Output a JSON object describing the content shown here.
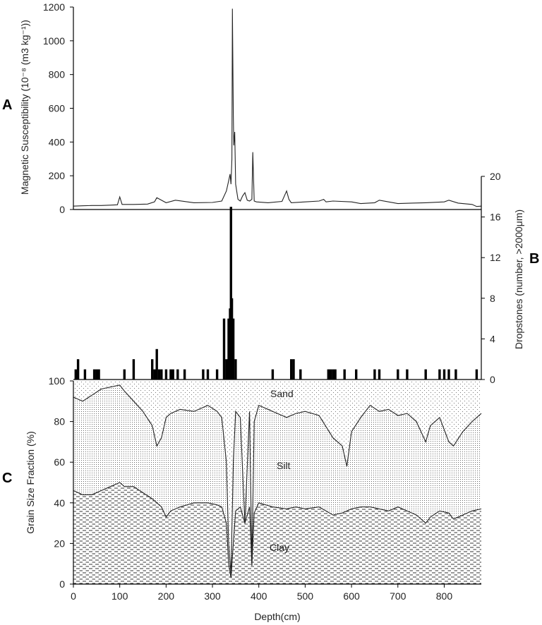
{
  "chart_data": [
    {
      "panel_label": "A",
      "type": "line",
      "ylabel": "Magnetic Susceptibility (10⁻⁸ (m3 kg⁻¹))",
      "ylim": [
        0,
        1200
      ],
      "yticks": [
        0,
        200,
        400,
        600,
        800,
        1000,
        1200
      ],
      "xlim": [
        0,
        880
      ],
      "x": [
        0,
        20,
        40,
        60,
        80,
        95,
        100,
        105,
        130,
        160,
        175,
        180,
        200,
        220,
        260,
        300,
        320,
        330,
        335,
        338,
        340,
        342,
        343,
        345,
        346,
        348,
        350,
        355,
        360,
        365,
        370,
        375,
        380,
        385,
        387,
        390,
        395,
        420,
        450,
        460,
        465,
        470,
        500,
        530,
        540,
        545,
        560,
        600,
        620,
        650,
        660,
        700,
        730,
        760,
        800,
        810,
        830,
        860,
        870,
        880
      ],
      "y": [
        20,
        22,
        24,
        24,
        26,
        28,
        75,
        30,
        30,
        32,
        45,
        70,
        40,
        55,
        40,
        42,
        50,
        110,
        170,
        210,
        150,
        300,
        1190,
        560,
        380,
        460,
        150,
        60,
        50,
        80,
        100,
        55,
        50,
        60,
        340,
        50,
        45,
        40,
        48,
        110,
        60,
        40,
        45,
        50,
        60,
        45,
        50,
        45,
        35,
        40,
        55,
        35,
        38,
        40,
        45,
        55,
        38,
        30,
        18,
        20
      ]
    },
    {
      "panel_label": "B",
      "type": "bar",
      "ylabel": "Dropstones (number, >2000μm)",
      "ylim": [
        0,
        20
      ],
      "yticks": [
        0,
        4,
        8,
        12,
        16,
        20
      ],
      "x": [
        5,
        10,
        25,
        45,
        50,
        55,
        110,
        130,
        170,
        175,
        180,
        185,
        190,
        200,
        210,
        215,
        225,
        240,
        280,
        290,
        310,
        325,
        330,
        335,
        338,
        340,
        342,
        345,
        350,
        430,
        470,
        475,
        490,
        550,
        555,
        560,
        565,
        585,
        610,
        650,
        660,
        700,
        720,
        760,
        790,
        800,
        810,
        825,
        870
      ],
      "values": [
        1,
        2,
        1,
        1,
        1,
        1,
        1,
        2,
        2,
        1,
        3,
        1,
        1,
        1,
        1,
        1,
        1,
        1,
        1,
        1,
        1,
        6,
        2,
        6,
        7,
        17,
        8,
        6,
        2,
        1,
        2,
        2,
        1,
        1,
        1,
        1,
        1,
        1,
        1,
        1,
        1,
        1,
        1,
        1,
        1,
        1,
        1,
        1,
        1
      ]
    },
    {
      "panel_label": "C",
      "type": "area",
      "ylabel": "Grain Size Fraction (%)",
      "xlabel": "Depth(cm)",
      "ylim": [
        0,
        100
      ],
      "yticks": [
        0,
        20,
        40,
        60,
        80,
        100
      ],
      "xlim": [
        0,
        880
      ],
      "xticks": [
        0,
        100,
        200,
        300,
        400,
        500,
        600,
        700,
        800
      ],
      "zone_labels": [
        "Sand",
        "Silt",
        "Clay"
      ],
      "x": [
        0,
        20,
        40,
        60,
        80,
        100,
        110,
        130,
        150,
        170,
        180,
        190,
        200,
        210,
        230,
        260,
        290,
        310,
        320,
        330,
        335,
        340,
        345,
        350,
        360,
        370,
        380,
        385,
        390,
        400,
        430,
        460,
        480,
        500,
        530,
        560,
        580,
        590,
        600,
        620,
        640,
        660,
        680,
        700,
        720,
        740,
        760,
        770,
        790,
        810,
        820,
        840,
        860,
        880
      ],
      "series": [
        {
          "name": "Silt",
          "values": [
            92,
            90,
            93,
            96,
            97,
            98,
            95,
            90,
            85,
            78,
            68,
            72,
            82,
            84,
            86,
            85,
            88,
            85,
            82,
            60,
            20,
            5,
            60,
            85,
            82,
            30,
            85,
            10,
            80,
            88,
            85,
            82,
            84,
            85,
            83,
            72,
            68,
            58,
            75,
            82,
            88,
            85,
            86,
            83,
            84,
            80,
            70,
            78,
            82,
            70,
            68,
            75,
            80,
            84
          ]
        },
        {
          "name": "Clay",
          "values": [
            46,
            44,
            44,
            46,
            48,
            50,
            48,
            48,
            45,
            42,
            40,
            38,
            33,
            36,
            38,
            40,
            40,
            39,
            38,
            30,
            10,
            3,
            20,
            36,
            38,
            30,
            38,
            9,
            35,
            40,
            38,
            37,
            38,
            37,
            38,
            34,
            35,
            36,
            37,
            38,
            38,
            37,
            36,
            38,
            36,
            34,
            30,
            33,
            36,
            35,
            32,
            34,
            36,
            37
          ]
        }
      ]
    }
  ]
}
